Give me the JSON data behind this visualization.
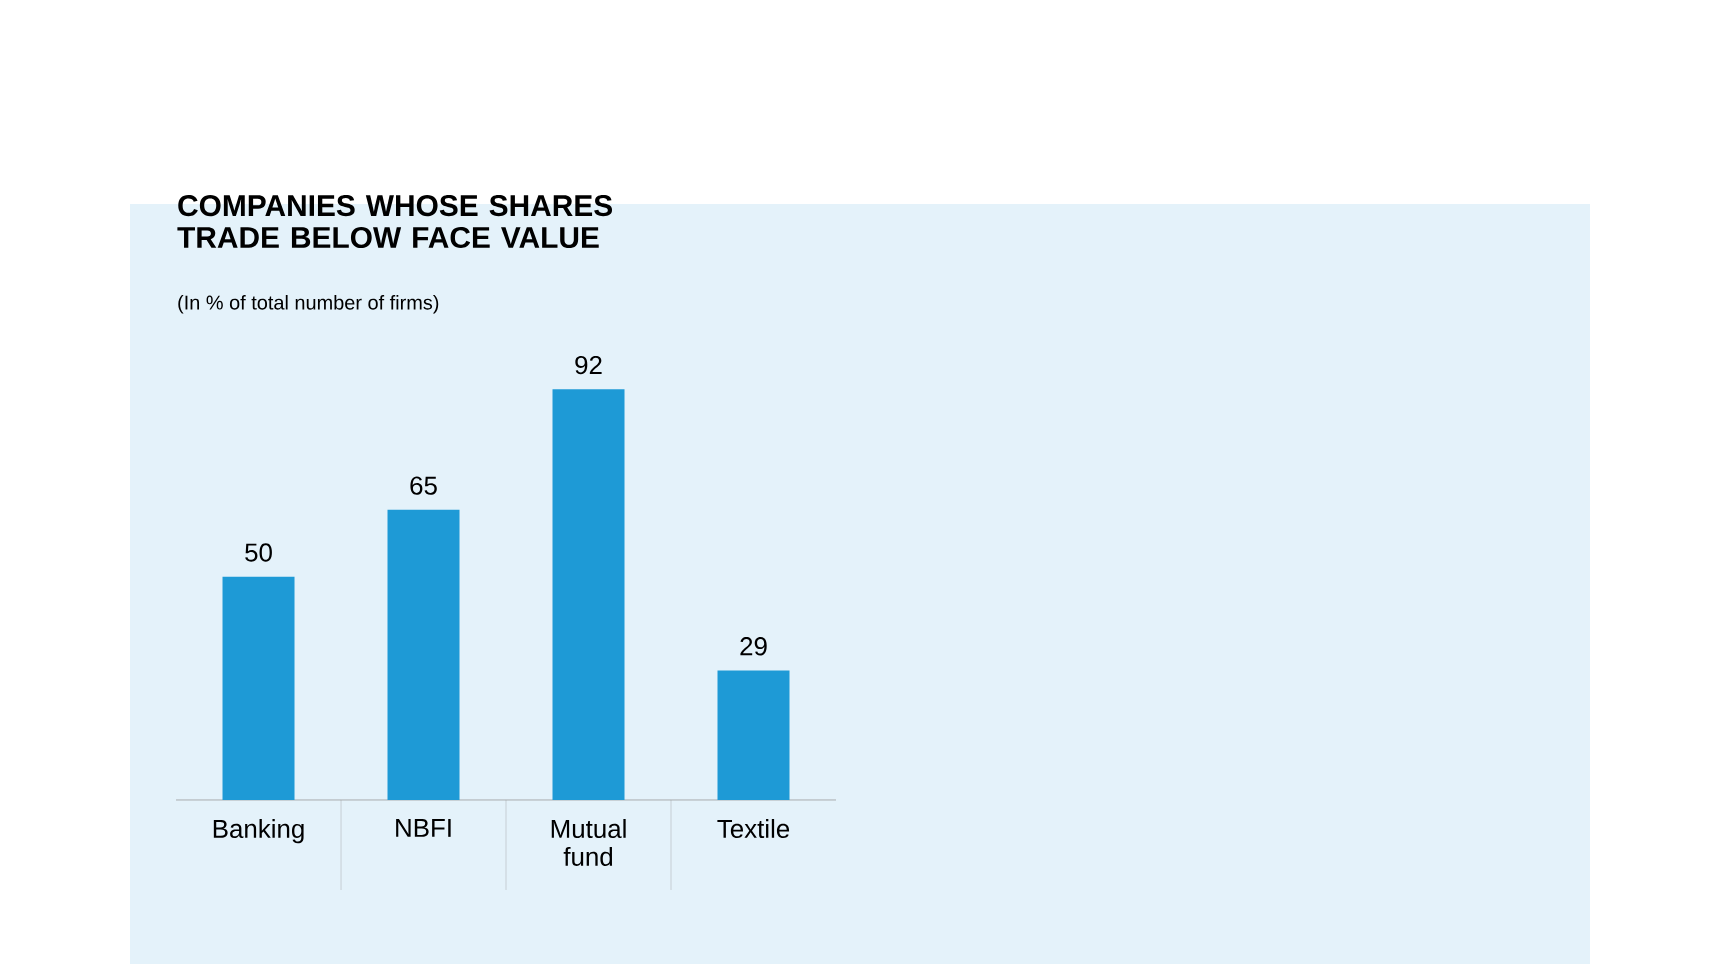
{
  "chart_data": {
    "type": "bar",
    "title": "COMPANIES WHOSE SHARES TRADE BELOW FACE VALUE",
    "subtitle": "(In % of total number of firms)",
    "categories": [
      "Banking",
      "NBFI",
      "Mutual fund",
      "Textile"
    ],
    "values": [
      50,
      65,
      92,
      29
    ],
    "color": "#1e9ad6",
    "data_labels": true
  }
}
